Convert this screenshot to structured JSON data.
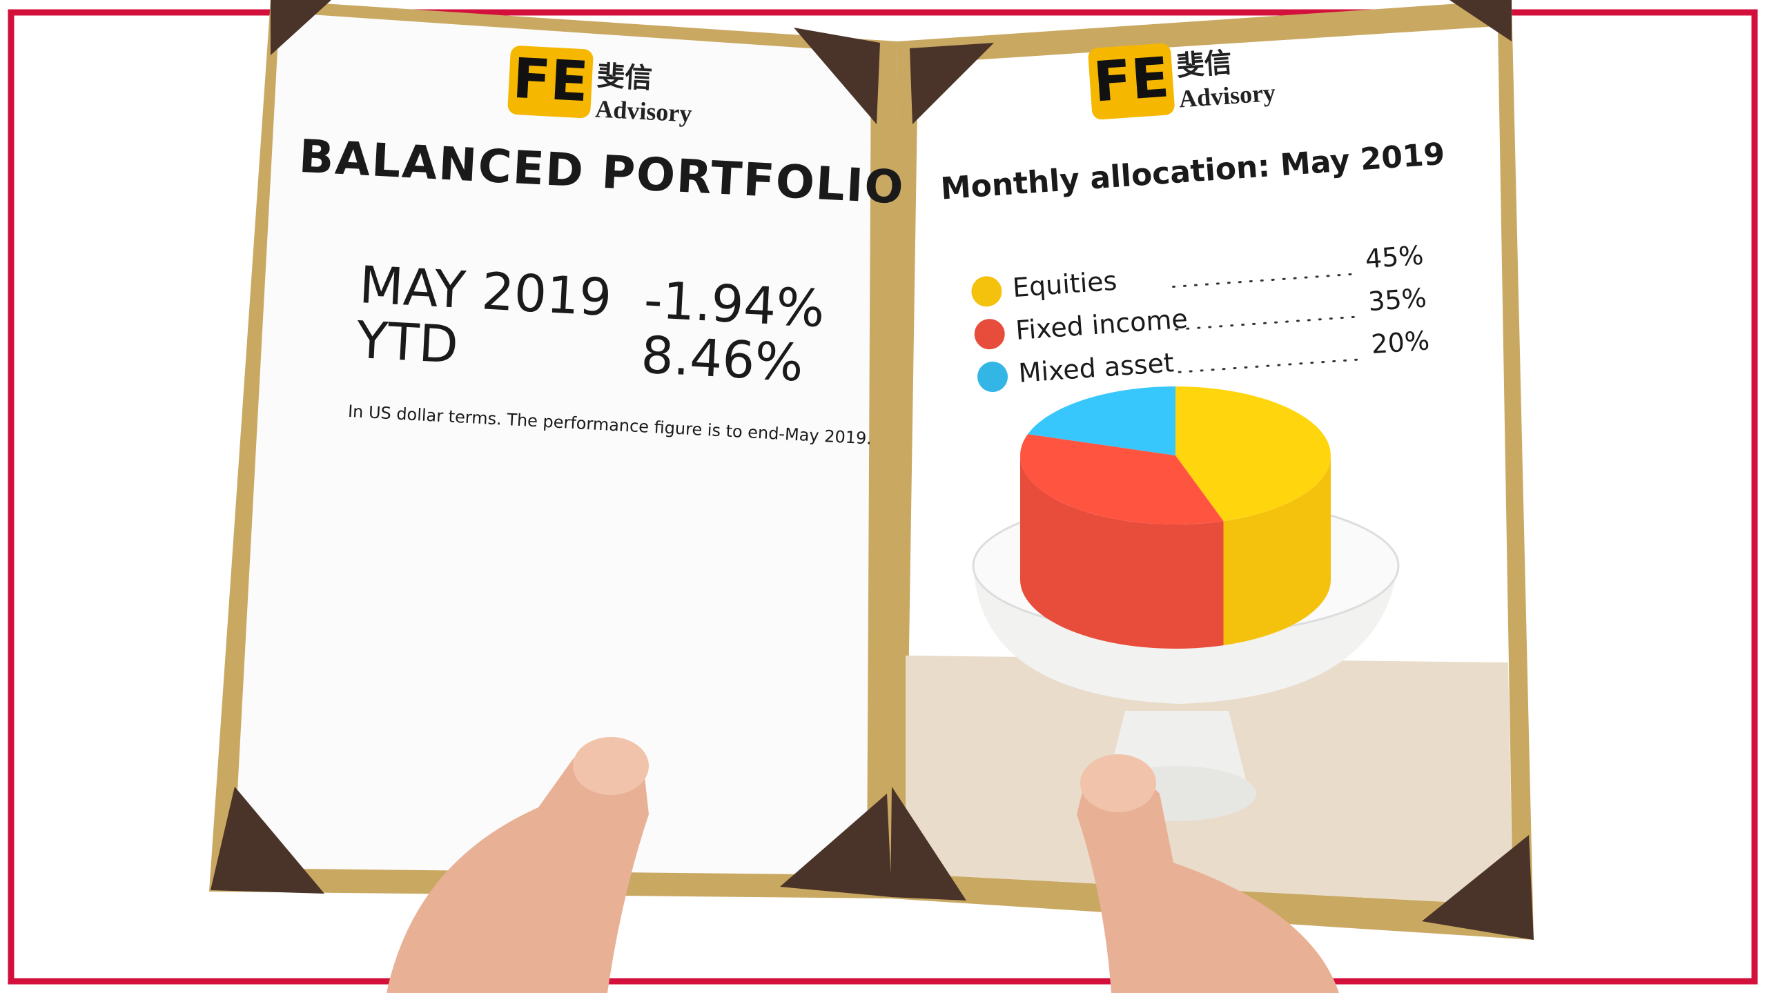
{
  "left_page": {
    "logo": {
      "mark": "FE",
      "chinese": "斐信",
      "name": "Advisory"
    },
    "title": "BALANCED PORTFOLIO",
    "performance": [
      {
        "period": "MAY 2019",
        "return": "-1.94%"
      },
      {
        "period": "YTD",
        "return": "8.46%"
      }
    ],
    "note": "In US dollar terms. The performance figure is to end-May 2019."
  },
  "right_page": {
    "logo": {
      "mark": "FE",
      "chinese": "斐信",
      "name": "Advisory"
    }
  },
  "chart_data": {
    "type": "pie",
    "title": "Monthly allocation: May 2019",
    "categories": [
      "Equities",
      "Fixed income",
      "Mixed asset"
    ],
    "values": [
      45,
      35,
      20
    ],
    "value_labels": [
      "45%",
      "35%",
      "20%"
    ],
    "colors": [
      "#f4c20d",
      "#e84c3a",
      "#33b5e5"
    ]
  }
}
